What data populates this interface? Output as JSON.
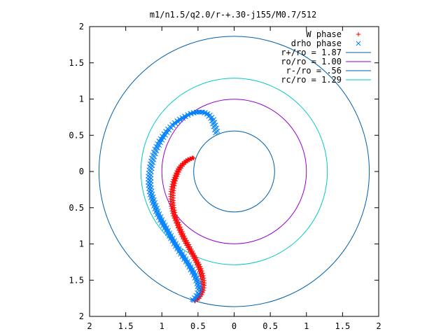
{
  "chart_data": {
    "type": "scatter",
    "title": "m1/n1.5/q2.0/r-+.30-j155/M0.7/512",
    "xlabel": "",
    "ylabel": "",
    "xlim": [
      -2,
      2
    ],
    "ylim": [
      -2,
      2
    ],
    "x_ticks": [
      -2,
      -1.5,
      -1,
      -0.5,
      0,
      0.5,
      1,
      1.5,
      2
    ],
    "y_ticks": [
      -2,
      -1.5,
      -1,
      -0.5,
      0,
      0.5,
      1,
      1.5,
      2
    ],
    "x_tick_labels": [
      "2",
      "1.5",
      "1",
      "0.5",
      "0",
      "0.5",
      "1",
      "1.5",
      "2"
    ],
    "y_tick_labels": [
      "2",
      "1.5",
      "1",
      "0.5",
      "0",
      "0.5",
      "1",
      "1.5",
      "2"
    ],
    "grid": false,
    "legend_position": "top-right",
    "series": [
      {
        "name": "W phase",
        "marker": "plus",
        "color": "#ff0000",
        "points": [
          [
            -0.56,
            0.19
          ],
          [
            -0.62,
            0.17
          ],
          [
            -0.68,
            0.13
          ],
          [
            -0.73,
            0.08
          ],
          [
            -0.77,
            0.02
          ],
          [
            -0.8,
            -0.05
          ],
          [
            -0.83,
            -0.13
          ],
          [
            -0.85,
            -0.22
          ],
          [
            -0.86,
            -0.31
          ],
          [
            -0.86,
            -0.4
          ],
          [
            -0.85,
            -0.5
          ],
          [
            -0.83,
            -0.6
          ],
          [
            -0.79,
            -0.7
          ],
          [
            -0.75,
            -0.8
          ],
          [
            -0.7,
            -0.91
          ],
          [
            -0.64,
            -1.02
          ],
          [
            -0.58,
            -1.13
          ],
          [
            -0.52,
            -1.24
          ],
          [
            -0.47,
            -1.35
          ],
          [
            -0.44,
            -1.46
          ],
          [
            -0.43,
            -1.56
          ],
          [
            -0.44,
            -1.64
          ],
          [
            -0.47,
            -1.71
          ],
          [
            -0.51,
            -1.76
          ],
          [
            -0.54,
            -1.79
          ]
        ]
      },
      {
        "name": "drho phase",
        "marker": "cross",
        "color": "#0080ff",
        "points": [
          [
            -0.24,
            0.53
          ],
          [
            -0.27,
            0.63
          ],
          [
            -0.3,
            0.72
          ],
          [
            -0.36,
            0.79
          ],
          [
            -0.43,
            0.82
          ],
          [
            -0.52,
            0.82
          ],
          [
            -0.6,
            0.8
          ],
          [
            -0.68,
            0.76
          ],
          [
            -0.76,
            0.71
          ],
          [
            -0.84,
            0.65
          ],
          [
            -0.91,
            0.58
          ],
          [
            -0.97,
            0.5
          ],
          [
            -1.03,
            0.41
          ],
          [
            -1.08,
            0.31
          ],
          [
            -1.12,
            0.2
          ],
          [
            -1.15,
            0.08
          ],
          [
            -1.17,
            -0.05
          ],
          [
            -1.17,
            -0.18
          ],
          [
            -1.15,
            -0.31
          ],
          [
            -1.11,
            -0.44
          ],
          [
            -1.06,
            -0.57
          ],
          [
            -1.0,
            -0.69
          ],
          [
            -0.93,
            -0.81
          ],
          [
            -0.86,
            -0.93
          ],
          [
            -0.78,
            -1.06
          ],
          [
            -0.7,
            -1.18
          ],
          [
            -0.62,
            -1.3
          ],
          [
            -0.55,
            -1.42
          ],
          [
            -0.5,
            -1.54
          ],
          [
            -0.48,
            -1.63
          ],
          [
            -0.5,
            -1.7
          ],
          [
            -0.54,
            -1.75
          ],
          [
            -0.58,
            -1.78
          ]
        ]
      },
      {
        "name": "r+/ro = 1.87",
        "type": "circle",
        "radius": 1.87,
        "color": "#0060ad"
      },
      {
        "name": "ro/ro = 1.00",
        "type": "circle",
        "radius": 1.0,
        "color": "#9400d3"
      },
      {
        "name": "r-/ro = .56",
        "type": "circle",
        "radius": 0.56,
        "color": "#0060ad"
      },
      {
        "name": "rc/ro = 1.29",
        "type": "circle",
        "radius": 1.29,
        "color": "#00c8c8"
      }
    ]
  }
}
